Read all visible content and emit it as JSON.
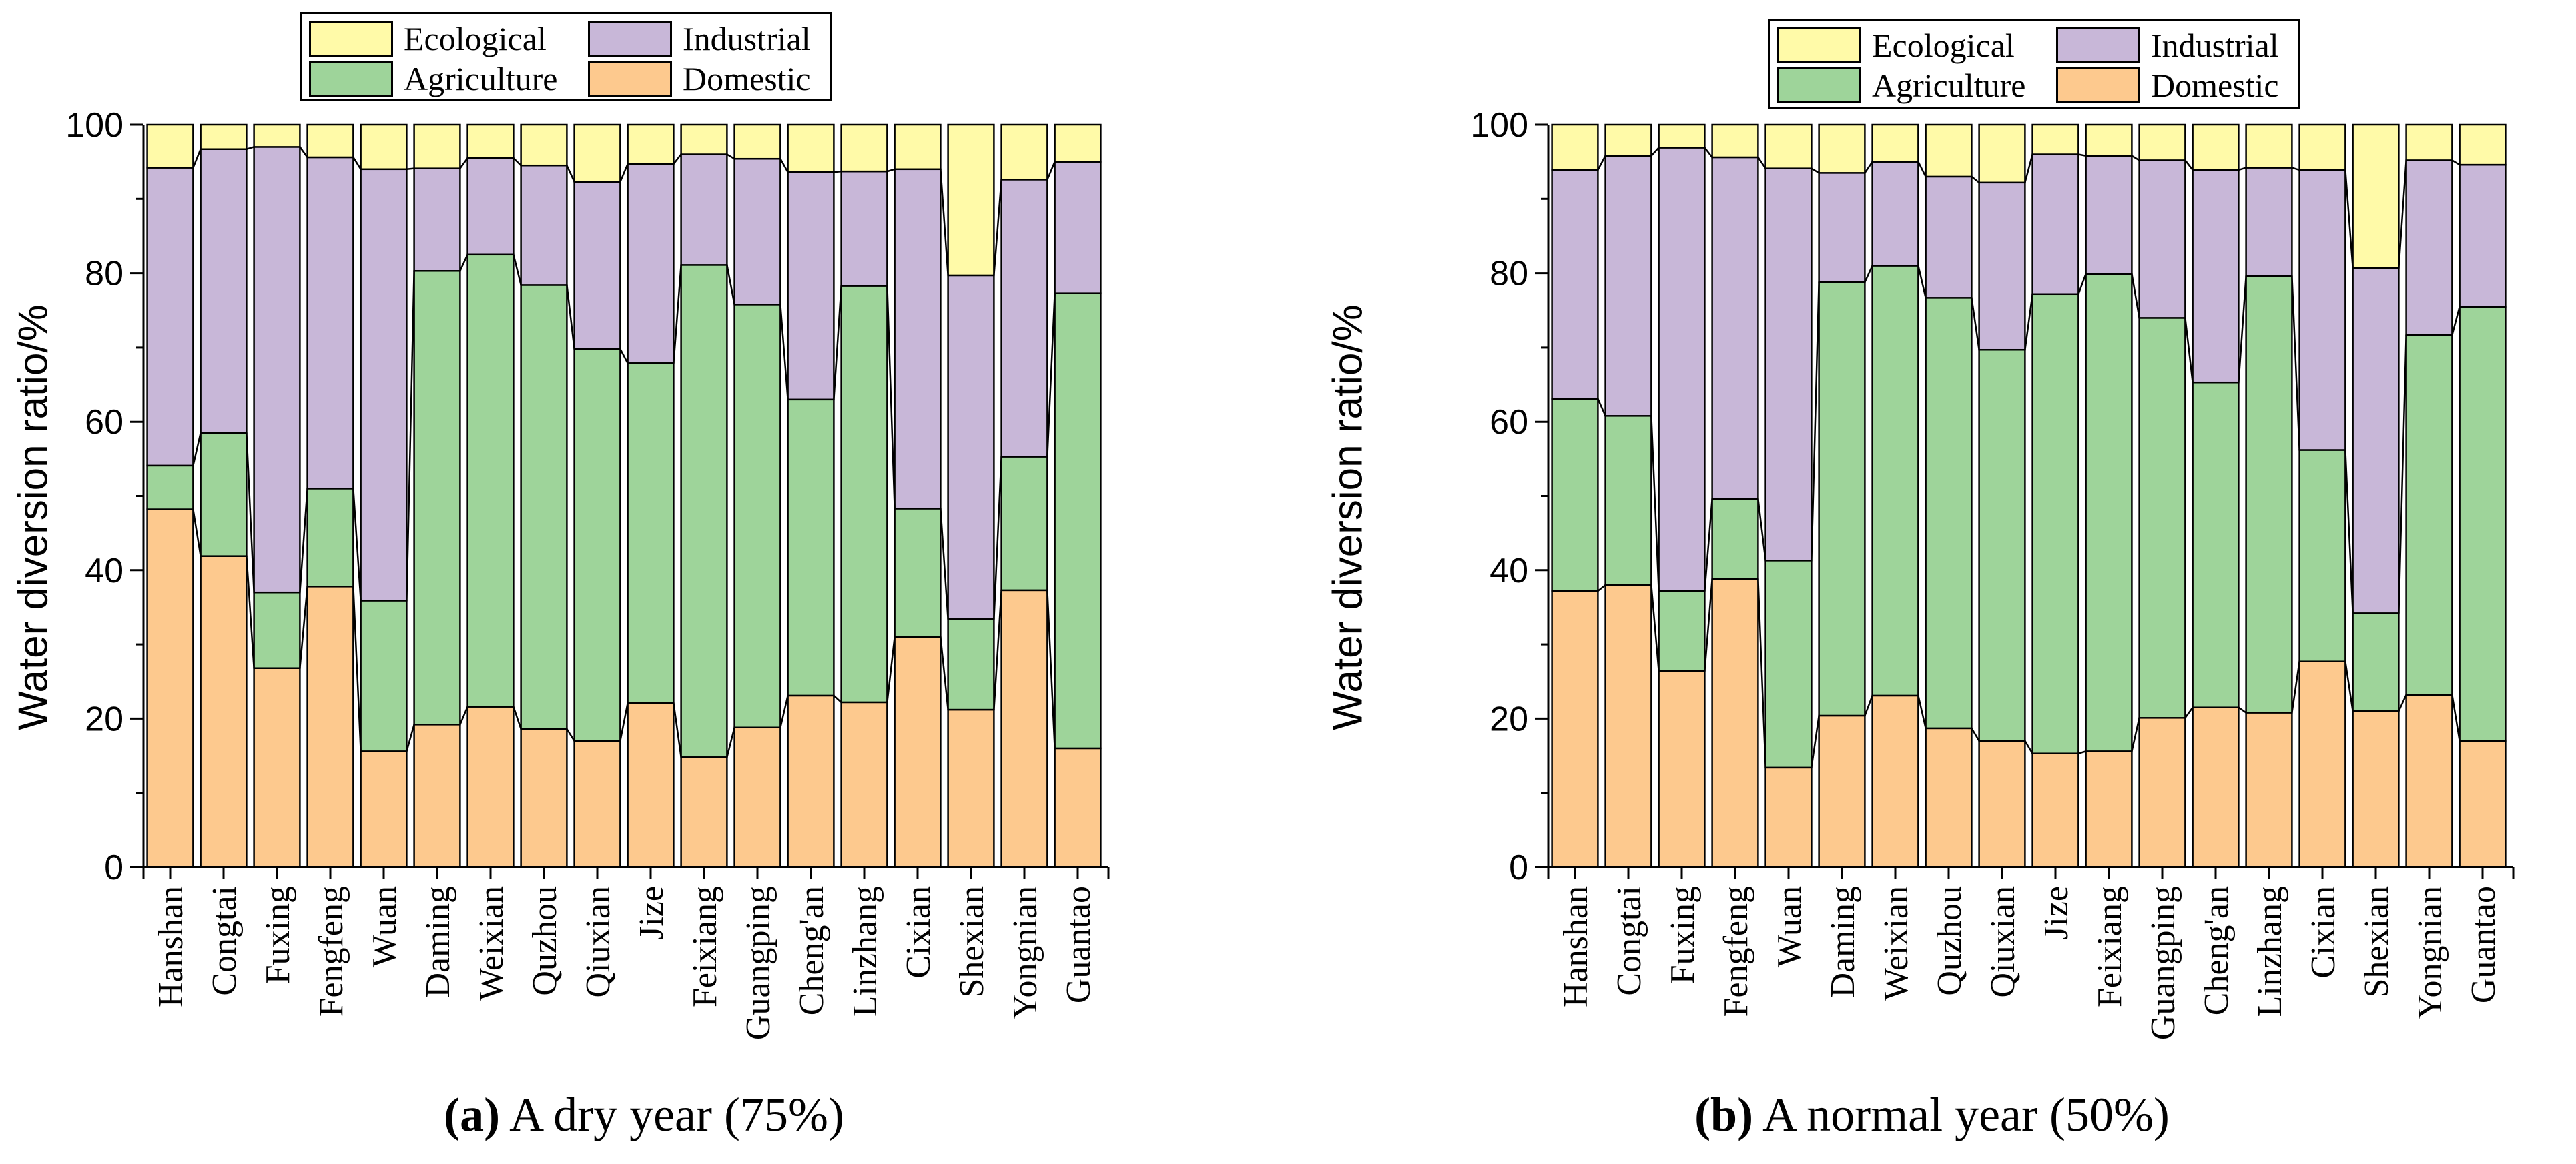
{
  "colors": {
    "Ecological": "#fffaa8",
    "Industrial": "#c8b7d8",
    "Agriculture": "#9ed49a",
    "Domestic": "#fdc98e"
  },
  "chart_data": [
    {
      "type": "bar",
      "stacked": true,
      "panel_label": "(a)",
      "caption_text": "A dry year (75%)",
      "ylabel": "Water diversion ratio/%",
      "xlabel": "",
      "ylim": [
        0,
        100
      ],
      "yticks": [
        0,
        20,
        40,
        60,
        80,
        100
      ],
      "legend": [
        "Ecological",
        "Industrial",
        "Agriculture",
        "Domestic"
      ],
      "legend_position": "top-center",
      "categories": [
        "Hanshan",
        "Congtai",
        "Fuxing",
        "Fengfeng",
        "Wuan",
        "Daming",
        "Weixian",
        "Quzhou",
        "Qiuxian",
        "Jize",
        "Feixiang",
        "Guangping",
        "Cheng'an",
        "Linzhang",
        "Cixian",
        "Shexian",
        "Yongnian",
        "Guantao"
      ],
      "series": [
        {
          "name": "Domestic",
          "values": [
            48.2,
            41.9,
            26.8,
            37.8,
            15.6,
            19.2,
            21.6,
            18.6,
            17.0,
            22.1,
            14.8,
            18.8,
            23.1,
            22.2,
            31.0,
            21.2,
            37.3,
            16.0
          ]
        },
        {
          "name": "Agriculture",
          "values": [
            5.9,
            16.6,
            10.2,
            13.2,
            20.3,
            61.1,
            60.9,
            59.8,
            52.8,
            45.8,
            66.3,
            57.0,
            39.9,
            56.1,
            17.3,
            12.2,
            18.0,
            61.3
          ]
        },
        {
          "name": "Industrial",
          "values": [
            40.1,
            38.2,
            60.0,
            44.6,
            58.1,
            13.8,
            13.0,
            16.1,
            22.5,
            26.8,
            14.9,
            19.6,
            30.6,
            15.4,
            45.7,
            46.3,
            37.3,
            17.7
          ]
        },
        {
          "name": "Ecological",
          "values": [
            5.8,
            3.3,
            3.0,
            4.4,
            6.0,
            5.9,
            4.5,
            5.5,
            7.7,
            5.3,
            4.0,
            4.6,
            6.4,
            6.3,
            6.0,
            20.3,
            7.4,
            5.0
          ]
        }
      ]
    },
    {
      "type": "bar",
      "stacked": true,
      "panel_label": "(b)",
      "caption_text": "A normal year (50%)",
      "ylabel": "Water diversion ratio/%",
      "xlabel": "",
      "ylim": [
        0,
        100
      ],
      "yticks": [
        0,
        20,
        40,
        60,
        80,
        100
      ],
      "legend": [
        "Ecological",
        "Industrial",
        "Agriculture",
        "Domestic"
      ],
      "legend_position": "top-center",
      "categories": [
        "Hanshan",
        "Congtai",
        "Fuxing",
        "Fengfeng",
        "Wuan",
        "Daming",
        "Weixian",
        "Quzhou",
        "Qiuxian",
        "Jize",
        "Feixiang",
        "Guangping",
        "Cheng'an",
        "Linzhang",
        "Cixian",
        "Shexian",
        "Yongnian",
        "Guantao"
      ],
      "series": [
        {
          "name": "Domestic",
          "values": [
            37.2,
            38.0,
            26.4,
            38.8,
            13.4,
            20.4,
            23.1,
            18.7,
            17.0,
            15.3,
            15.6,
            20.1,
            21.5,
            20.8,
            27.7,
            21.0,
            23.2,
            17.0
          ]
        },
        {
          "name": "Agriculture",
          "values": [
            25.9,
            22.8,
            10.8,
            10.8,
            27.9,
            58.4,
            57.9,
            58.0,
            52.7,
            61.9,
            64.3,
            53.9,
            43.8,
            58.8,
            28.5,
            13.2,
            48.5,
            58.5
          ]
        },
        {
          "name": "Industrial",
          "values": [
            30.8,
            35.0,
            59.7,
            46.0,
            52.8,
            14.7,
            14.0,
            16.3,
            22.5,
            18.8,
            15.9,
            21.2,
            28.6,
            14.6,
            37.7,
            46.5,
            23.5,
            19.1
          ]
        },
        {
          "name": "Ecological",
          "values": [
            6.1,
            4.2,
            3.1,
            4.4,
            5.9,
            6.5,
            5.0,
            7.0,
            7.8,
            4.0,
            4.2,
            4.8,
            6.1,
            5.8,
            6.1,
            19.3,
            4.8,
            5.4
          ]
        }
      ]
    }
  ]
}
